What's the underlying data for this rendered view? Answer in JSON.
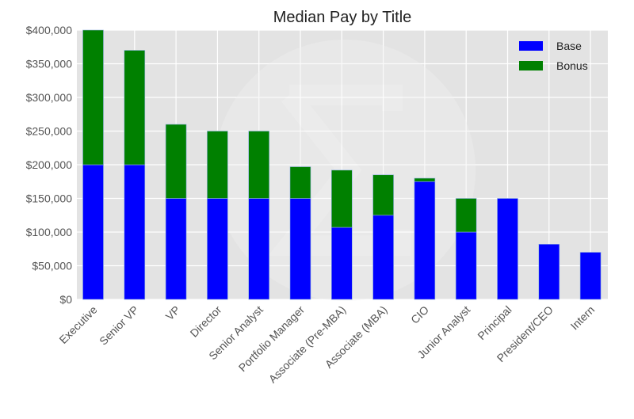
{
  "chart_data": {
    "type": "bar",
    "stacked": true,
    "title": "Median Pay by Title",
    "xlabel": "",
    "ylabel": "",
    "ylim": [
      0,
      400000
    ],
    "yticks": [
      0,
      50000,
      100000,
      150000,
      200000,
      250000,
      300000,
      350000,
      400000
    ],
    "ytick_labels": [
      "$0",
      "$50,000",
      "$100,000",
      "$150,000",
      "$200,000",
      "$250,000",
      "$300,000",
      "$350,000",
      "$400,000"
    ],
    "categories": [
      "Executive",
      "Senior VP",
      "VP",
      "Director",
      "Senior Analyst",
      "Portfolio Manager",
      "Associate (Pre-MBA)",
      "Associate (MBA)",
      "CIO",
      "Junior Analyst",
      "Principal",
      "President/CEO",
      "Intern"
    ],
    "series": [
      {
        "name": "Base",
        "color": "#0000ff",
        "values": [
          200000,
          200000,
          150000,
          150000,
          150000,
          150000,
          107000,
          125000,
          175000,
          100000,
          150000,
          82000,
          70000
        ]
      },
      {
        "name": "Bonus",
        "color": "#008000",
        "values": [
          200000,
          170000,
          110000,
          100000,
          100000,
          47000,
          85000,
          60000,
          5000,
          50000,
          0,
          0,
          0
        ]
      }
    ],
    "grid": true,
    "legend_position": "top-right"
  }
}
